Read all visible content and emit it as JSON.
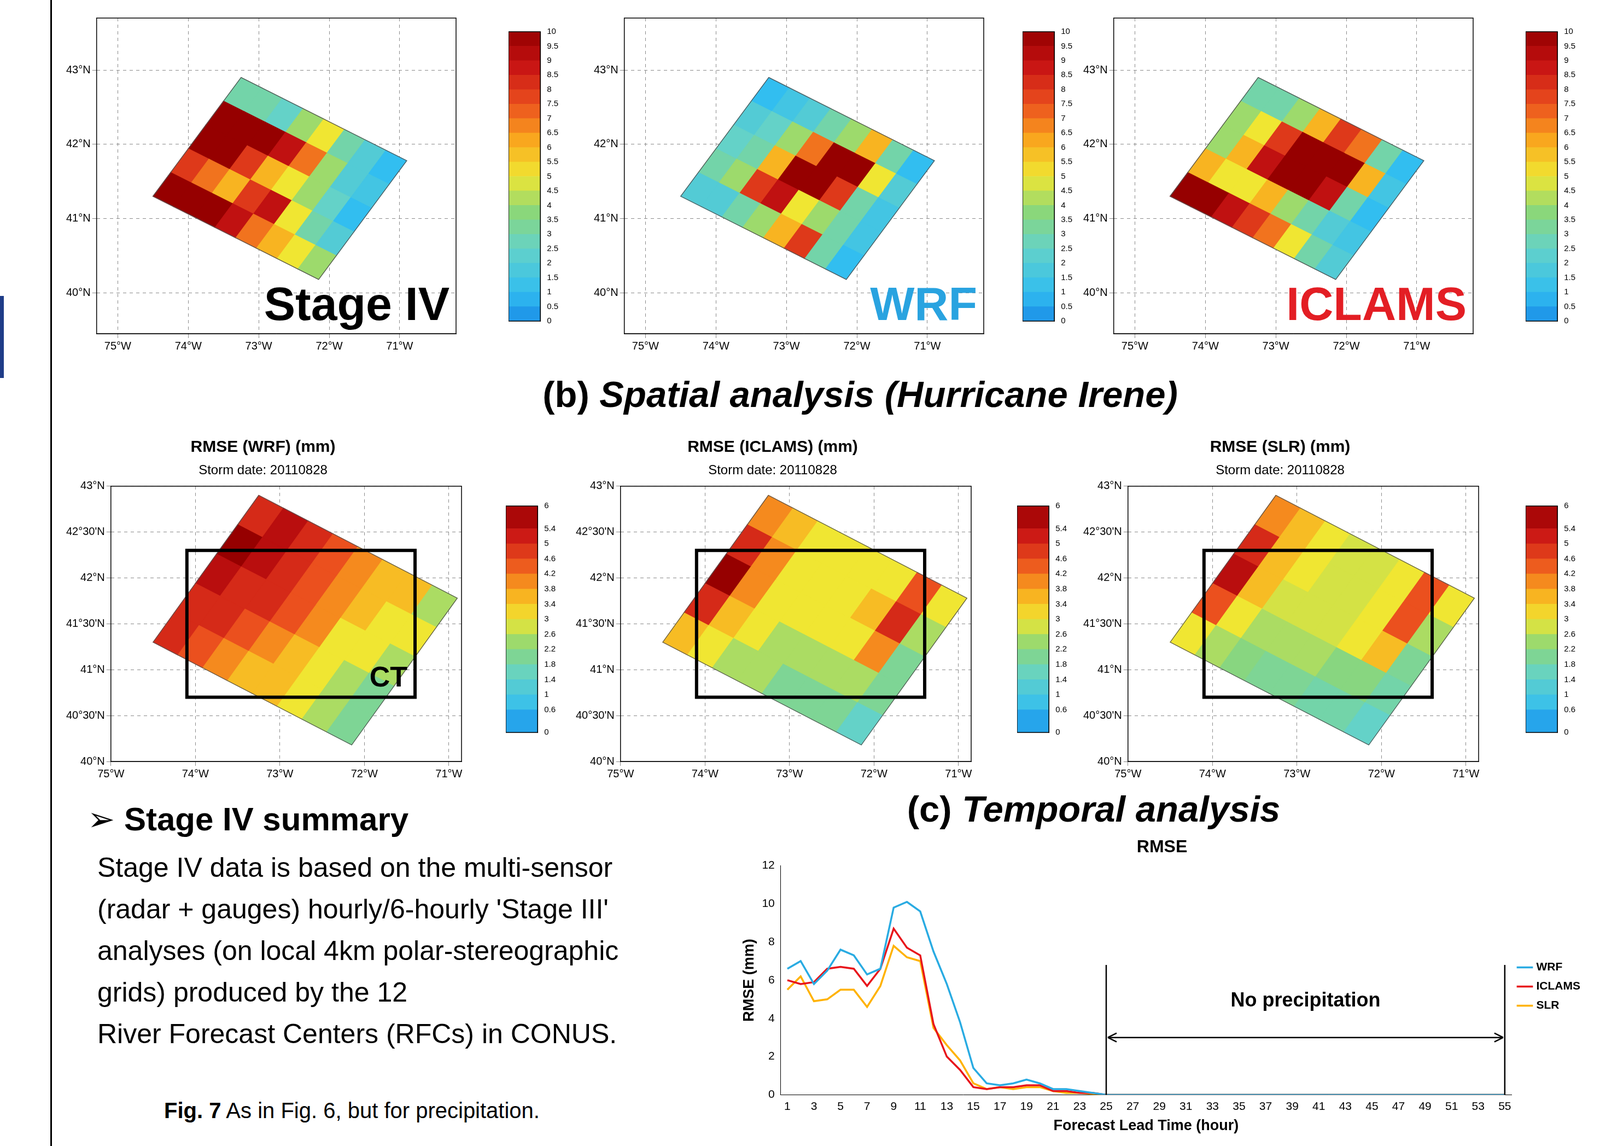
{
  "chart_data": [
    {
      "type": "heatmap",
      "label": "Stage IV",
      "color": "#000000",
      "xlim": [
        -75.3,
        -70.2
      ],
      "ylim": [
        39.45,
        43.7
      ],
      "xticks": [
        {
          "value": -75,
          "label": "75°W"
        },
        {
          "value": -74,
          "label": "74°W"
        },
        {
          "value": -73,
          "label": "73°W"
        },
        {
          "value": -72,
          "label": "72°W"
        },
        {
          "value": -71,
          "label": "71°W"
        }
      ],
      "yticks": [
        {
          "value": 40,
          "label": "40°N"
        },
        {
          "value": 41,
          "label": "41°N"
        },
        {
          "value": 42,
          "label": "42°N"
        },
        {
          "value": 43,
          "label": "43°N"
        }
      ],
      "grid": true,
      "domain_corners": {
        "west": [
          -74.5,
          41.3
        ],
        "north": [
          -73.25,
          42.9
        ],
        "south": [
          -72.15,
          40.18
        ]
      },
      "cells": [
        [
          3,
          3,
          2.5,
          4,
          5,
          3,
          2,
          1
        ],
        [
          10,
          10,
          10,
          9,
          7,
          4,
          2,
          1.5
        ],
        [
          10,
          10,
          8,
          6,
          5,
          4,
          2.5,
          1
        ],
        [
          8,
          7,
          6,
          8,
          9,
          5,
          3,
          2
        ],
        [
          10,
          10,
          10,
          9,
          7,
          6,
          5,
          4
        ]
      ],
      "colorbar": {
        "range": [
          0,
          10
        ],
        "ticks": [
          0,
          0.5,
          1,
          1.5,
          2,
          2.5,
          3,
          3.5,
          4,
          4.5,
          5,
          5.5,
          6,
          6.5,
          7,
          7.5,
          8,
          8.5,
          9,
          9.5,
          10
        ]
      }
    },
    {
      "type": "heatmap",
      "label": "WRF",
      "color": "#29a3e0",
      "xlim": [
        -75.3,
        -70.2
      ],
      "ylim": [
        39.45,
        43.7
      ],
      "xticks": [
        {
          "value": -75,
          "label": "75°W"
        },
        {
          "value": -74,
          "label": "74°W"
        },
        {
          "value": -73,
          "label": "73°W"
        },
        {
          "value": -72,
          "label": "72°W"
        },
        {
          "value": -71,
          "label": "71°W"
        }
      ],
      "yticks": [
        {
          "value": 40,
          "label": "40°N"
        },
        {
          "value": 41,
          "label": "41°N"
        },
        {
          "value": 42,
          "label": "42°N"
        },
        {
          "value": 43,
          "label": "43°N"
        }
      ],
      "grid": true,
      "domain_corners": {
        "west": [
          -74.5,
          41.3
        ],
        "north": [
          -73.25,
          42.9
        ],
        "south": [
          -72.15,
          40.18
        ]
      },
      "cells": [
        [
          1,
          1.5,
          2,
          3,
          4,
          6,
          3,
          1
        ],
        [
          2,
          2.5,
          4,
          7,
          10,
          10,
          5,
          2
        ],
        [
          2.5,
          3,
          6,
          10,
          10,
          8,
          3,
          1.5
        ],
        [
          3,
          4,
          8,
          9,
          5,
          4,
          3,
          1.5
        ],
        [
          2,
          2,
          3,
          4,
          6,
          8,
          3,
          1
        ]
      ],
      "colorbar": {
        "range": [
          0,
          10
        ],
        "ticks": [
          0,
          0.5,
          1,
          1.5,
          2,
          2.5,
          3,
          3.5,
          4,
          4.5,
          5,
          5.5,
          6,
          6.5,
          7,
          7.5,
          8,
          8.5,
          9,
          9.5,
          10
        ]
      }
    },
    {
      "type": "heatmap",
      "label": "ICLAMS",
      "color": "#e31e24",
      "xlim": [
        -75.3,
        -70.2
      ],
      "ylim": [
        39.45,
        43.7
      ],
      "xticks": [
        {
          "value": -75,
          "label": "75°W"
        },
        {
          "value": -74,
          "label": "74°W"
        },
        {
          "value": -73,
          "label": "73°W"
        },
        {
          "value": -72,
          "label": "72°W"
        },
        {
          "value": -71,
          "label": "71°W"
        }
      ],
      "yticks": [
        {
          "value": 40,
          "label": "40°N"
        },
        {
          "value": 41,
          "label": "41°N"
        },
        {
          "value": 42,
          "label": "42°N"
        },
        {
          "value": 43,
          "label": "43°N"
        }
      ],
      "grid": true,
      "domain_corners": {
        "west": [
          -74.5,
          41.3
        ],
        "north": [
          -73.25,
          42.9
        ],
        "south": [
          -72.15,
          40.18
        ]
      },
      "cells": [
        [
          3,
          3,
          4,
          6,
          8,
          7,
          3,
          1
        ],
        [
          4,
          5,
          8,
          10,
          10,
          10,
          6,
          1.5
        ],
        [
          4,
          6,
          9,
          10,
          10,
          9,
          3,
          1
        ],
        [
          6,
          5,
          5,
          6,
          4,
          3,
          2,
          1.5
        ],
        [
          10,
          10,
          9,
          8,
          7,
          5,
          3,
          2
        ]
      ],
      "colorbar": {
        "range": [
          0,
          10
        ],
        "ticks": [
          0,
          0.5,
          1,
          1.5,
          2,
          2.5,
          3,
          3.5,
          4,
          4.5,
          5,
          5.5,
          6,
          6.5,
          7,
          7.5,
          8,
          8.5,
          9,
          9.5,
          10
        ]
      }
    },
    {
      "type": "heatmap",
      "title": "RMSE (WRF) (mm)",
      "subtitle": "Storm date: 20110828",
      "xlim": [
        -75,
        -70.85
      ],
      "ylim": [
        40,
        43
      ],
      "xticks": [
        {
          "value": -75,
          "label": "75°W"
        },
        {
          "value": -74,
          "label": "74°W"
        },
        {
          "value": -73,
          "label": "73°W"
        },
        {
          "value": -72,
          "label": "72°W"
        },
        {
          "value": -71,
          "label": "71°W"
        }
      ],
      "yticks": [
        {
          "value": 40,
          "label": "40°N"
        },
        {
          "value": 40.5,
          "label": "40°30'N"
        },
        {
          "value": 41,
          "label": "41°N"
        },
        {
          "value": 41.5,
          "label": "41°30'N"
        },
        {
          "value": 42,
          "label": "42°N"
        },
        {
          "value": 42.5,
          "label": "42°30'N"
        },
        {
          "value": 43,
          "label": "43°N"
        }
      ],
      "grid": true,
      "domain_corners": {
        "west": [
          -74.5,
          41.3
        ],
        "north": [
          -73.25,
          42.9
        ],
        "south": [
          -72.15,
          40.18
        ]
      },
      "cells": [
        [
          5,
          5.5,
          5,
          4.5,
          4,
          3.5,
          3.5,
          2.5
        ],
        [
          6,
          5.5,
          5,
          4.5,
          4,
          3.5,
          3,
          3
        ],
        [
          5.5,
          5,
          5,
          4.5,
          4,
          3,
          3,
          2.5
        ],
        [
          5,
          5,
          4.5,
          4,
          3.5,
          3,
          2.5,
          2
        ],
        [
          5,
          4.5,
          4,
          3.5,
          3.5,
          3,
          2.5,
          2
        ]
      ],
      "box": {
        "lon": [
          -74.1,
          -71.4
        ],
        "lat": [
          40.7,
          42.3
        ],
        "label": "CT"
      },
      "colorbar": {
        "range": [
          0,
          6
        ],
        "ticks": [
          0,
          0.6,
          1,
          1.4,
          1.8,
          2.2,
          2.6,
          3,
          3.4,
          3.8,
          4.2,
          4.6,
          5,
          5.4,
          6
        ]
      }
    },
    {
      "type": "heatmap",
      "title": "RMSE (ICLAMS) (mm)",
      "subtitle": "Storm date: 20110828",
      "xlim": [
        -75,
        -70.85
      ],
      "ylim": [
        40,
        43
      ],
      "xticks": [
        {
          "value": -75,
          "label": "75°W"
        },
        {
          "value": -74,
          "label": "74°W"
        },
        {
          "value": -73,
          "label": "73°W"
        },
        {
          "value": -72,
          "label": "72°W"
        },
        {
          "value": -71,
          "label": "71°W"
        }
      ],
      "yticks": [
        {
          "value": 40,
          "label": "40°N"
        },
        {
          "value": 40.5,
          "label": "40°30'N"
        },
        {
          "value": 41,
          "label": "41°N"
        },
        {
          "value": 41.5,
          "label": "41°30'N"
        },
        {
          "value": 42,
          "label": "42°N"
        },
        {
          "value": 42.5,
          "label": "42°30'N"
        },
        {
          "value": 43,
          "label": "43°N"
        }
      ],
      "grid": true,
      "domain_corners": {
        "west": [
          -74.5,
          41.3
        ],
        "north": [
          -73.25,
          42.9
        ],
        "south": [
          -72.15,
          40.18
        ]
      },
      "cells": [
        [
          4,
          3.5,
          3,
          3,
          3,
          3,
          4.5,
          3
        ],
        [
          5,
          4,
          3,
          3,
          3,
          3.5,
          5,
          2.5
        ],
        [
          6,
          4,
          3,
          3,
          3,
          3,
          4,
          2
        ],
        [
          5,
          3.5,
          3,
          2.5,
          2.5,
          2.5,
          2.5,
          2
        ],
        [
          3.5,
          3,
          2.5,
          2.5,
          2,
          2,
          2,
          1.5
        ]
      ],
      "box": {
        "lon": [
          -74.1,
          -71.4
        ],
        "lat": [
          40.7,
          42.3
        ]
      },
      "colorbar": {
        "range": [
          0,
          6
        ],
        "ticks": [
          0,
          0.6,
          1,
          1.4,
          1.8,
          2.2,
          2.6,
          3,
          3.4,
          3.8,
          4.2,
          4.6,
          5,
          5.4,
          6
        ]
      }
    },
    {
      "type": "heatmap",
      "title": "RMSE (SLR) (mm)",
      "subtitle": "Storm date: 20110828",
      "xlim": [
        -75,
        -70.85
      ],
      "ylim": [
        40,
        43
      ],
      "xticks": [
        {
          "value": -75,
          "label": "75°W"
        },
        {
          "value": -74,
          "label": "74°W"
        },
        {
          "value": -73,
          "label": "73°W"
        },
        {
          "value": -72,
          "label": "72°W"
        },
        {
          "value": -71,
          "label": "71°W"
        }
      ],
      "yticks": [
        {
          "value": 40,
          "label": "40°N"
        },
        {
          "value": 40.5,
          "label": "40°30'N"
        },
        {
          "value": 41,
          "label": "41°N"
        },
        {
          "value": 41.5,
          "label": "41°30'N"
        },
        {
          "value": 42,
          "label": "42°N"
        },
        {
          "value": 42.5,
          "label": "42°30'N"
        },
        {
          "value": 43,
          "label": "43°N"
        }
      ],
      "grid": true,
      "domain_corners": {
        "west": [
          -74.5,
          41.3
        ],
        "north": [
          -73.25,
          42.9
        ],
        "south": [
          -72.15,
          40.18
        ]
      },
      "cells": [
        [
          4,
          3.5,
          3,
          2.8,
          2.8,
          3,
          4.5,
          3
        ],
        [
          5,
          3.5,
          3,
          2.8,
          2.8,
          3,
          4.5,
          2.5
        ],
        [
          5.5,
          3.5,
          2.8,
          2.8,
          2.8,
          3,
          3.5,
          2
        ],
        [
          4.5,
          3,
          2.5,
          2.5,
          2.5,
          2.2,
          2.2,
          1.8
        ],
        [
          3,
          2.5,
          2.2,
          2,
          2,
          1.8,
          1.8,
          1.5
        ]
      ],
      "box": {
        "lon": [
          -74.1,
          -71.4
        ],
        "lat": [
          40.7,
          42.3
        ]
      },
      "colorbar": {
        "range": [
          0,
          6
        ],
        "ticks": [
          0,
          0.6,
          1,
          1.4,
          1.8,
          2.2,
          2.6,
          3,
          3.4,
          3.8,
          4.2,
          4.6,
          5,
          5.4,
          6
        ]
      }
    },
    {
      "type": "line",
      "title": "(c) Temporal analysis",
      "subtitle": "RMSE",
      "xlabel": "Forecast Lead Time (hour)",
      "ylabel": "RMSE (mm)",
      "categories": [
        1,
        null,
        3,
        null,
        5,
        null,
        7,
        null,
        9,
        null,
        11,
        null,
        13,
        null,
        15,
        null,
        17,
        null,
        19,
        null,
        21,
        null,
        23,
        null,
        25,
        null,
        27,
        null,
        29,
        null,
        31,
        null,
        33,
        null,
        35,
        null,
        37,
        null,
        39,
        null,
        41,
        null,
        43,
        null,
        45,
        null,
        47,
        null,
        49,
        null,
        51,
        null,
        53,
        null,
        55
      ],
      "series": [
        {
          "name": "WRF",
          "color": "#29abe2",
          "values": [
            6.6,
            7.0,
            5.8,
            6.5,
            7.6,
            7.3,
            6.3,
            6.6,
            9.8,
            10.1,
            9.6,
            7.5,
            5.8,
            3.8,
            1.4,
            0.6,
            0.5,
            0.6,
            0.8,
            0.6,
            0.3,
            0.3,
            0.2,
            0.1,
            0,
            0,
            0,
            0,
            0,
            0,
            0,
            0,
            0,
            0,
            0,
            0,
            0,
            0,
            0,
            0,
            0,
            0,
            0,
            0,
            0,
            0,
            0,
            0,
            0,
            0,
            0,
            0,
            0,
            0,
            0
          ]
        },
        {
          "name": "ICLAMS",
          "color": "#e8141b",
          "values": [
            6.0,
            5.8,
            5.9,
            6.6,
            6.7,
            6.6,
            5.7,
            6.6,
            8.7,
            7.7,
            7.3,
            3.7,
            2.0,
            1.3,
            0.4,
            0.3,
            0.4,
            0.4,
            0.5,
            0.5,
            0.2,
            0.2,
            0.1,
            0.1,
            0,
            0,
            0,
            0,
            0,
            0,
            0,
            0,
            0,
            0,
            0,
            0,
            0,
            0,
            0,
            0,
            0,
            0,
            0,
            0,
            0,
            0,
            0,
            0,
            0,
            0,
            0,
            0,
            0,
            0,
            0
          ]
        },
        {
          "name": "SLR",
          "color": "#ffb200",
          "values": [
            5.5,
            6.2,
            4.9,
            5.0,
            5.5,
            5.5,
            4.6,
            5.7,
            7.8,
            7.2,
            7.0,
            3.5,
            2.6,
            1.8,
            0.6,
            0.3,
            0.4,
            0.3,
            0.4,
            0.4,
            0.2,
            0.1,
            0.1,
            0.05,
            0,
            0,
            0,
            0,
            0,
            0,
            0,
            0,
            0,
            0,
            0,
            0,
            0,
            0,
            0,
            0,
            0,
            0,
            0,
            0,
            0,
            0,
            0,
            0,
            0,
            0,
            0,
            0,
            0,
            0,
            0
          ]
        }
      ],
      "ylim": [
        0,
        12
      ],
      "yticks": [
        0,
        2,
        4,
        6,
        8,
        10,
        12
      ],
      "grid": false,
      "legend": "right",
      "annotation": {
        "text": "No precipitation",
        "x_start": 25,
        "x_end": 55,
        "arrow_y": 3,
        "line_top": 6.8
      }
    }
  ],
  "section_title": "(b) Spatial analysis (Hurricane Irene)",
  "summary": {
    "heading": "➢ Stage IV summary",
    "lines": [
      "Stage IV data is based on the multi-sensor",
      "(radar + gauges) hourly/6-hourly 'Stage III'",
      "analyses (on local 4km polar-stereographic",
      "grids) produced by the 12",
      "River Forecast Centers (RFCs) in CONUS."
    ]
  },
  "caption": {
    "label": "Fig. 7",
    "text": "As in Fig. 6, but for precipitation."
  }
}
